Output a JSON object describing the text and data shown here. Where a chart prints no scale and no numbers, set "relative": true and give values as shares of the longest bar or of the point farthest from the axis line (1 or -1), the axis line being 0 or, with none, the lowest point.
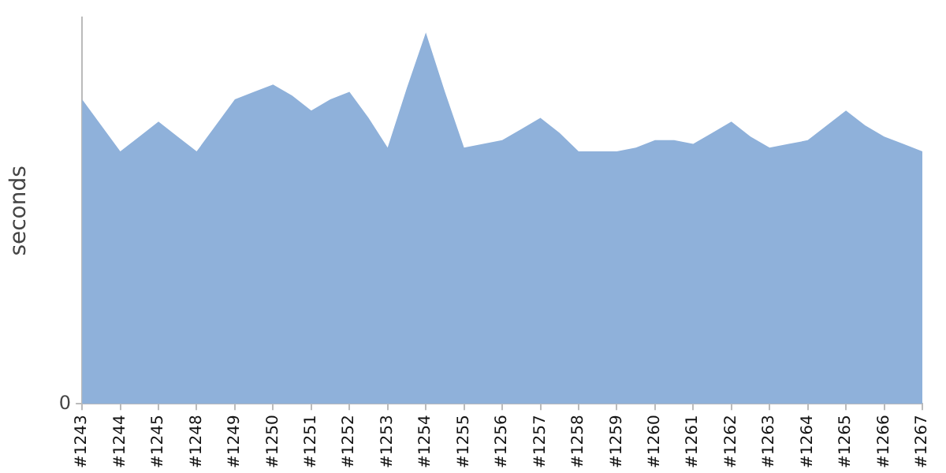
{
  "chart_data": {
    "type": "area",
    "ylabel": "seconds",
    "relative": true,
    "annotations": [
      "0"
    ],
    "grid": false,
    "legend": false,
    "color": "#8fb1da",
    "categories": [
      "#1243",
      null,
      "#1244",
      null,
      "#1245",
      null,
      "#1248",
      null,
      "#1249",
      null,
      "#1250",
      null,
      "#1251",
      null,
      "#1252",
      null,
      "#1253",
      null,
      "#1254",
      null,
      "#1255",
      null,
      "#1256",
      null,
      "#1257",
      null,
      "#1258",
      null,
      "#1259",
      null,
      "#1260",
      null,
      "#1261",
      null,
      "#1262",
      null,
      "#1263",
      null,
      "#1264",
      null,
      "#1265",
      null,
      "#1266",
      null,
      "#1267"
    ],
    "values": [
      0.82,
      0.75,
      0.68,
      0.72,
      0.76,
      0.72,
      0.68,
      0.75,
      0.82,
      0.84,
      0.86,
      0.83,
      0.79,
      0.82,
      0.84,
      0.77,
      0.69,
      0.85,
      1,
      0.84,
      0.69,
      0.7,
      0.71,
      0.74,
      0.77,
      0.73,
      0.68,
      0.68,
      0.68,
      0.69,
      0.71,
      0.71,
      0.7,
      0.73,
      0.76,
      0.72,
      0.69,
      0.7,
      0.71,
      0.75,
      0.79,
      0.75,
      0.72,
      0.7,
      0.68
    ]
  }
}
